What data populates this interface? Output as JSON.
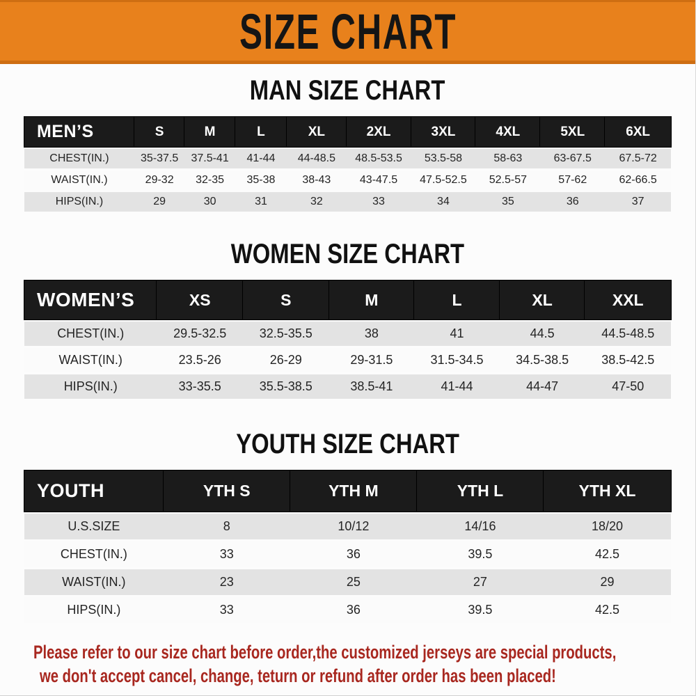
{
  "banner": {
    "title": "SIZE CHART"
  },
  "sections": [
    {
      "id": "men",
      "heading": "MAN SIZE CHART",
      "table": {
        "header": [
          "MEN’S",
          "S",
          "M",
          "L",
          "XL",
          "2XL",
          "3XL",
          "4XL",
          "5XL",
          "6XL"
        ],
        "rows": [
          {
            "label": "CHEST(IN.)",
            "values": [
              "35-37.5",
              "37.5-41",
              "41-44",
              "44-48.5",
              "48.5-53.5",
              "53.5-58",
              "58-63",
              "63-67.5",
              "67.5-72"
            ]
          },
          {
            "label": "WAIST(IN.)",
            "values": [
              "29-32",
              "32-35",
              "35-38",
              "38-43",
              "43-47.5",
              "47.5-52.5",
              "52.5-57",
              "57-62",
              "62-66.5"
            ]
          },
          {
            "label": "HIPS(IN.)",
            "values": [
              "29",
              "30",
              "31",
              "32",
              "33",
              "34",
              "35",
              "36",
              "37"
            ]
          }
        ]
      }
    },
    {
      "id": "women",
      "heading": "WOMEN SIZE CHART",
      "table": {
        "header": [
          "WOMEN’S",
          "XS",
          "S",
          "M",
          "L",
          "XL",
          "XXL"
        ],
        "rows": [
          {
            "label": "CHEST(IN.)",
            "values": [
              "29.5-32.5",
              "32.5-35.5",
              "38",
              "41",
              "44.5",
              "44.5-48.5"
            ]
          },
          {
            "label": "WAIST(IN.)",
            "values": [
              "23.5-26",
              "26-29",
              "29-31.5",
              "31.5-34.5",
              "34.5-38.5",
              "38.5-42.5"
            ]
          },
          {
            "label": "HIPS(IN.)",
            "values": [
              "33-35.5",
              "35.5-38.5",
              "38.5-41",
              "41-44",
              "44-47",
              "47-50"
            ]
          }
        ]
      }
    },
    {
      "id": "youth",
      "heading": "YOUTH SIZE CHART",
      "table": {
        "header": [
          "YOUTH",
          "YTH S",
          "YTH M",
          "YTH L",
          "YTH XL"
        ],
        "rows": [
          {
            "label": "U.S.SIZE",
            "values": [
              "8",
              "10/12",
              "14/16",
              "18/20"
            ]
          },
          {
            "label": "CHEST(IN.)",
            "values": [
              "33",
              "36",
              "39.5",
              "42.5"
            ]
          },
          {
            "label": "WAIST(IN.)",
            "values": [
              "23",
              "25",
              "27",
              "29"
            ]
          },
          {
            "label": "HIPS(IN.)",
            "values": [
              "33",
              "36",
              "39.5",
              "42.5"
            ]
          }
        ]
      }
    }
  ],
  "footer": {
    "line1": "Please refer to our size chart before order,the customized jerseys are special products,",
    "line2": "we don't accept cancel, change, teturn or refund after order has been placed!"
  },
  "colors": {
    "banner-orange": "#E8811C",
    "banner-orange-dark": "#CE6E12",
    "bar-black": "#1B1B1B",
    "row-gray": "#E3E3E3",
    "notice-red": "#A8271F"
  }
}
